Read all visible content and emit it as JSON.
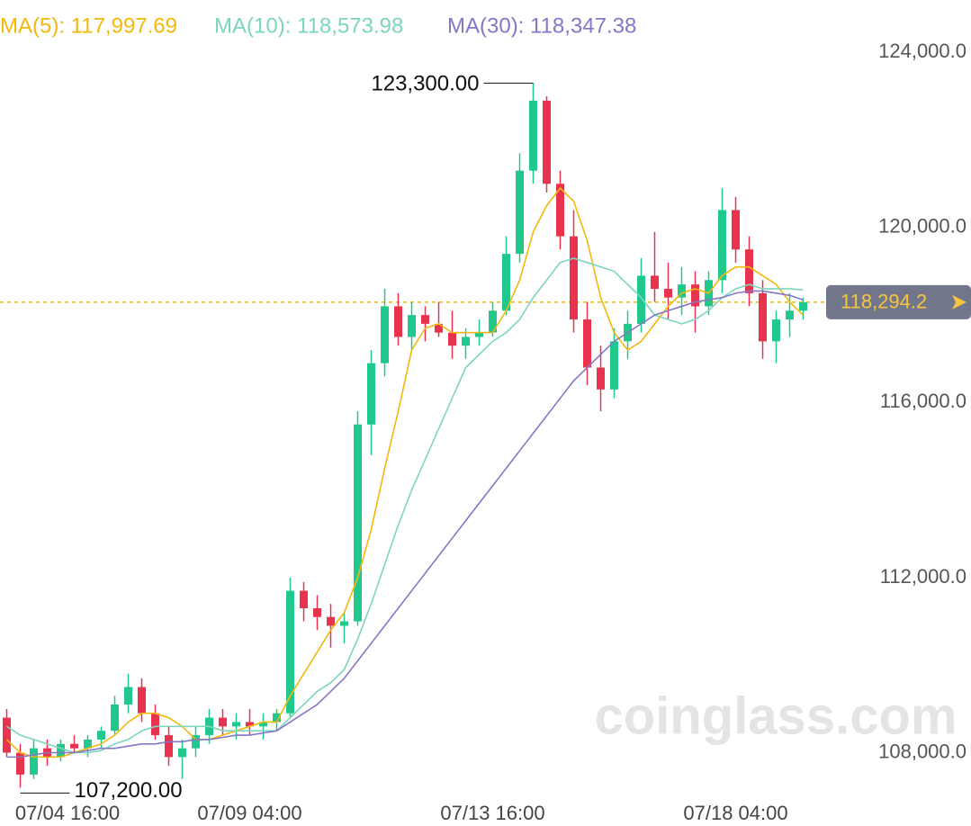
{
  "chart_data": {
    "type": "candlestick",
    "categories": [
      "07/04 16:00",
      null,
      null,
      null,
      null,
      null,
      null,
      null,
      null,
      null,
      null,
      null,
      null,
      null,
      null,
      null,
      null,
      null,
      "07/09 04:00",
      null,
      null,
      null,
      null,
      null,
      null,
      null,
      null,
      null,
      null,
      null,
      null,
      null,
      null,
      null,
      null,
      null,
      "07/13 16:00",
      null,
      null,
      null,
      null,
      null,
      null,
      null,
      null,
      null,
      null,
      null,
      null,
      null,
      null,
      null,
      null,
      null,
      "07/18 04:00",
      null,
      null,
      null,
      null,
      null
    ],
    "open": [
      108800,
      108000,
      107500,
      108100,
      107900,
      108200,
      108100,
      108300,
      108500,
      109100,
      109500,
      108900,
      108400,
      107900,
      108100,
      108400,
      108800,
      108600,
      108700,
      108600,
      108700,
      108900,
      111700,
      111300,
      111100,
      110900,
      111000,
      115500,
      116900,
      118200,
      117500,
      118000,
      117800,
      117600,
      117300,
      117500,
      117600,
      118100,
      119400,
      121300,
      122900,
      121000,
      119800,
      117900,
      116800,
      116300,
      117400,
      117800,
      118900,
      118600,
      118400,
      118700,
      118200,
      118800,
      120400,
      119500,
      118500,
      117400,
      117900,
      118100
    ],
    "high": [
      109000,
      108200,
      108300,
      108300,
      108300,
      108400,
      108400,
      108600,
      109300,
      109800,
      109700,
      109100,
      108600,
      108300,
      108600,
      109000,
      109000,
      108900,
      109000,
      108900,
      109000,
      112000,
      111900,
      111600,
      111400,
      111200,
      115800,
      117200,
      118600,
      118500,
      118300,
      118200,
      118300,
      118100,
      117700,
      117900,
      118300,
      119800,
      121700,
      123300,
      123000,
      121300,
      120400,
      118300,
      117300,
      117700,
      118100,
      119300,
      119900,
      119200,
      119100,
      119000,
      119000,
      120900,
      120700,
      119800,
      118800,
      118100,
      118500,
      118400
    ],
    "low": [
      107900,
      107200,
      107400,
      107700,
      107800,
      108000,
      107900,
      108100,
      108400,
      108900,
      108700,
      108300,
      107700,
      107400,
      107900,
      108200,
      108400,
      108300,
      108400,
      108300,
      108500,
      108800,
      111000,
      110800,
      110400,
      110500,
      110900,
      114800,
      116600,
      117300,
      117200,
      117400,
      117500,
      117000,
      117000,
      117300,
      117500,
      118000,
      119200,
      121000,
      120800,
      119500,
      117600,
      116400,
      115800,
      116100,
      117000,
      117600,
      118300,
      117900,
      118000,
      117600,
      118000,
      118500,
      119200,
      118200,
      117000,
      116900,
      117500,
      117900
    ],
    "close": [
      108000,
      107500,
      108100,
      107900,
      108200,
      108100,
      108300,
      108500,
      109100,
      109500,
      108900,
      108400,
      107900,
      108100,
      108400,
      108800,
      108600,
      108700,
      108600,
      108700,
      108900,
      111700,
      111300,
      111100,
      110900,
      111000,
      115500,
      116900,
      118200,
      117500,
      118000,
      117800,
      117600,
      117300,
      117500,
      117600,
      118100,
      119400,
      121300,
      122900,
      121000,
      119800,
      117900,
      116800,
      116300,
      117400,
      117800,
      118900,
      118600,
      118400,
      118700,
      118200,
      118800,
      120400,
      119500,
      118500,
      117400,
      117900,
      118100,
      118294.2
    ],
    "up_color": "#20c98b",
    "down_color": "#e8334f",
    "series": [
      {
        "name": "MA(5): 117,997.69",
        "color": "#f2b80c",
        "values": [
          108300,
          108000,
          107900,
          107900,
          107900,
          108000,
          108100,
          108200,
          108400,
          108700,
          108900,
          108900,
          108800,
          108600,
          108300,
          108300,
          108400,
          108500,
          108600,
          108700,
          108700,
          109300,
          109800,
          110300,
          110800,
          111200,
          112000,
          113100,
          114500,
          115800,
          117200,
          117700,
          117800,
          117600,
          117600,
          117600,
          117600,
          118100,
          118800,
          119900,
          120500,
          120900,
          120600,
          119700,
          118400,
          117600,
          117200,
          117400,
          117800,
          118200,
          118500,
          118600,
          118500,
          118900,
          119100,
          119100,
          118900,
          118700,
          118300,
          117997.69
        ]
      },
      {
        "name": "MA(10): 118,573.98",
        "color": "#7dd5c0",
        "values": [
          108600,
          108400,
          108300,
          108200,
          108100,
          108000,
          108000,
          108050,
          108200,
          108300,
          108500,
          108600,
          108600,
          108600,
          108600,
          108600,
          108500,
          108500,
          108500,
          108500,
          108500,
          108800,
          109100,
          109400,
          109600,
          109900,
          110600,
          111400,
          112300,
          113200,
          114000,
          114700,
          115400,
          116100,
          116800,
          117100,
          117400,
          117600,
          117900,
          118400,
          118800,
          119200,
          119300,
          119200,
          119100,
          119000,
          118700,
          118400,
          118000,
          117900,
          117800,
          117900,
          118100,
          118400,
          118600,
          118700,
          118600,
          118600,
          118600,
          118573.98
        ]
      },
      {
        "name": "MA(30): 118,347.38",
        "color": "#8677c6",
        "values": [
          107900,
          107900,
          107950,
          108000,
          108000,
          108000,
          108050,
          108100,
          108100,
          108150,
          108200,
          108200,
          108250,
          108250,
          108300,
          108300,
          108350,
          108400,
          108400,
          108450,
          108500,
          108700,
          108900,
          109100,
          109400,
          109700,
          110100,
          110500,
          110900,
          111300,
          111700,
          112100,
          112500,
          112900,
          113300,
          113700,
          114100,
          114500,
          114900,
          115300,
          115700,
          116100,
          116500,
          116800,
          117100,
          117400,
          117600,
          117800,
          118000,
          118100,
          118200,
          118300,
          118350,
          118400,
          118500,
          118550,
          118550,
          118500,
          118450,
          118347.38
        ]
      }
    ],
    "ylim": [
      106900,
      125200
    ],
    "yticks": [
      {
        "value": 124000,
        "label": "124,000.0"
      },
      {
        "value": 120000,
        "label": "120,000.0"
      },
      {
        "value": 116000,
        "label": "116,000.0"
      },
      {
        "value": 112000,
        "label": "112,000.0"
      },
      {
        "value": 108000,
        "label": "108,000.0"
      }
    ],
    "current_price": {
      "value": 118294.2,
      "label": "118,294.2"
    },
    "annotations": [
      {
        "value": 123300,
        "label": "123,300.00"
      },
      {
        "value": 107200,
        "label": "107,200.00"
      }
    ],
    "watermark": "coinglass.com"
  }
}
